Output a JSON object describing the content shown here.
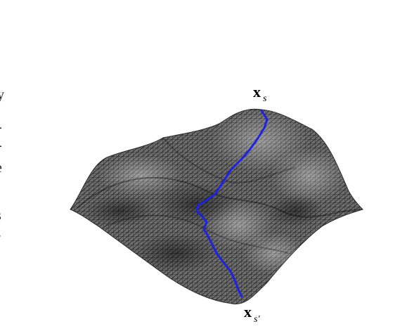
{
  "figure": {
    "labels": {
      "start": {
        "main": "x",
        "sub": "s"
      },
      "end": {
        "main": "x",
        "sub": "s′"
      }
    },
    "colors": {
      "surface_fill": "#6f6f6f",
      "mesh_line": "#1c1c1c",
      "path": "#1f23e0",
      "background": "#ffffff"
    },
    "clipped_text_fragments": [
      "y",
      "-",
      "-",
      "e",
      "s",
      "e.",
      ")"
    ]
  }
}
